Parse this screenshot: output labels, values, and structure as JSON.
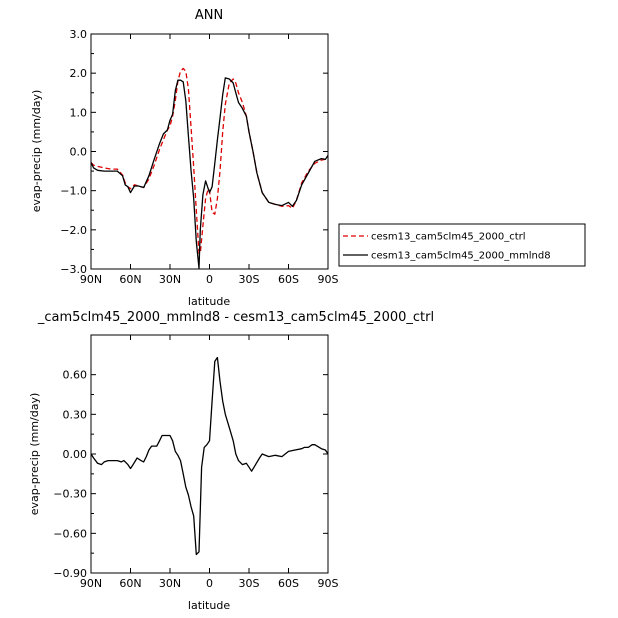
{
  "chart_data": [
    {
      "type": "line",
      "title": "ANN",
      "xlabel": "latitude",
      "ylabel": "evap-precip (mm/day)",
      "x_tick_labels": [
        "90N",
        "60N",
        "30N",
        "0",
        "30S",
        "60S",
        "90S"
      ],
      "y_tick_labels": [
        "3.0",
        "2.0",
        "1.0",
        "0.0",
        "-1.0",
        "-2.0",
        "-3.0"
      ],
      "xlim": [
        90,
        -90
      ],
      "ylim": [
        -3.0,
        3.0
      ],
      "legend_position": "right",
      "series": [
        {
          "name": "cesm13_cam5clm45_2000_ctrl",
          "color": "#dd0000",
          "dash": "dashed",
          "x": [
            90,
            88,
            85,
            80,
            75,
            70,
            66,
            64,
            62,
            60,
            57,
            54,
            50,
            46,
            42,
            38,
            35,
            32,
            30,
            28,
            26,
            24,
            22,
            20,
            18,
            16,
            14,
            12,
            10,
            8,
            7,
            5,
            3,
            1,
            0,
            -2,
            -4,
            -6,
            -8,
            -10,
            -12,
            -15,
            -18,
            -20,
            -22,
            -25,
            -28,
            -30,
            -33,
            -36,
            -40,
            -45,
            -50,
            -55,
            -60,
            -63,
            -66,
            -70,
            -75,
            -80,
            -85,
            -88,
            -90
          ],
          "y": [
            -0.28,
            -0.35,
            -0.38,
            -0.42,
            -0.45,
            -0.45,
            -0.6,
            -0.8,
            -0.9,
            -0.95,
            -0.85,
            -0.88,
            -0.92,
            -0.7,
            -0.35,
            0.05,
            0.3,
            0.55,
            0.65,
            0.9,
            1.3,
            1.8,
            2.05,
            2.12,
            2.05,
            1.6,
            0.6,
            -0.4,
            -1.5,
            -2.6,
            -2.6,
            -1.9,
            -1.2,
            -0.95,
            -1.0,
            -1.55,
            -1.6,
            -1.2,
            -0.5,
            0.5,
            1.2,
            1.75,
            1.85,
            1.75,
            1.5,
            1.25,
            0.9,
            0.5,
            0.0,
            -0.55,
            -1.05,
            -1.3,
            -1.35,
            -1.4,
            -1.38,
            -1.45,
            -1.25,
            -0.8,
            -0.5,
            -0.3,
            -0.22,
            -0.2,
            -0.12
          ]
        },
        {
          "name": "cesm13_cam5clm45_2000_mmlnd8",
          "color": "#000000",
          "dash": "solid",
          "x": [
            90,
            88,
            85,
            80,
            75,
            70,
            66,
            64,
            62,
            60,
            57,
            54,
            50,
            46,
            42,
            38,
            35,
            32,
            30,
            28,
            26,
            24,
            22,
            20,
            18,
            16,
            14,
            12,
            10,
            8,
            7,
            5,
            3,
            1,
            0,
            -2,
            -4,
            -6,
            -8,
            -10,
            -12,
            -15,
            -18,
            -20,
            -22,
            -25,
            -28,
            -30,
            -33,
            -36,
            -40,
            -45,
            -50,
            -55,
            -60,
            -63,
            -66,
            -70,
            -75,
            -80,
            -85,
            -88,
            -90
          ],
          "y": [
            -0.28,
            -0.42,
            -0.48,
            -0.5,
            -0.5,
            -0.5,
            -0.62,
            -0.85,
            -0.9,
            -1.05,
            -0.88,
            -0.88,
            -0.92,
            -0.62,
            -0.2,
            0.2,
            0.45,
            0.55,
            0.8,
            0.95,
            1.55,
            1.82,
            1.82,
            1.78,
            1.3,
            0.4,
            -0.5,
            -1.2,
            -2.3,
            -2.98,
            -2.0,
            -1.1,
            -0.75,
            -0.95,
            -1.05,
            -0.9,
            -0.3,
            0.3,
            0.85,
            1.45,
            1.88,
            1.85,
            1.75,
            1.5,
            1.25,
            1.1,
            0.9,
            0.5,
            0.0,
            -0.55,
            -1.05,
            -1.3,
            -1.35,
            -1.38,
            -1.3,
            -1.4,
            -1.25,
            -0.85,
            -0.55,
            -0.25,
            -0.18,
            -0.2,
            -0.1
          ]
        }
      ]
    },
    {
      "type": "line",
      "title": "_cam5clm45_2000_mmlnd8 - cesm13_cam5clm45_2000_ctrl",
      "xlabel": "latitude",
      "ylabel": "evap-precip (mm/day)",
      "x_tick_labels": [
        "90N",
        "60N",
        "30N",
        "0",
        "30S",
        "60S",
        "90S"
      ],
      "y_tick_labels": [
        "0.60",
        "0.30",
        "0.00",
        "-0.30",
        "-0.60",
        "-0.90"
      ],
      "xlim": [
        90,
        -90
      ],
      "ylim": [
        -0.9,
        0.9
      ],
      "series": [
        {
          "color": "#000000",
          "dash": "solid",
          "x": [
            90,
            88,
            85,
            82,
            80,
            77,
            74,
            70,
            67,
            65,
            62,
            60,
            58,
            55,
            52,
            50,
            48,
            46,
            44,
            42,
            40,
            38,
            36,
            34,
            32,
            30,
            28,
            26,
            24,
            22,
            20,
            18,
            16,
            14,
            12,
            10,
            8,
            6,
            4,
            2,
            0,
            -2,
            -4,
            -6,
            -8,
            -10,
            -12,
            -15,
            -18,
            -20,
            -22,
            -25,
            -28,
            -30,
            -32,
            -35,
            -38,
            -40,
            -45,
            -50,
            -55,
            -60,
            -65,
            -70,
            -72,
            -75,
            -78,
            -80,
            -85,
            -88,
            -90
          ],
          "y": [
            0.0,
            -0.03,
            -0.07,
            -0.08,
            -0.06,
            -0.05,
            -0.05,
            -0.05,
            -0.06,
            -0.05,
            -0.08,
            -0.11,
            -0.08,
            -0.03,
            -0.05,
            -0.06,
            -0.02,
            0.03,
            0.06,
            0.06,
            0.06,
            0.1,
            0.14,
            0.14,
            0.14,
            0.14,
            0.1,
            0.02,
            -0.01,
            -0.05,
            -0.15,
            -0.25,
            -0.31,
            -0.4,
            -0.47,
            -0.76,
            -0.74,
            -0.1,
            0.05,
            0.07,
            0.1,
            0.4,
            0.7,
            0.73,
            0.55,
            0.4,
            0.3,
            0.2,
            0.1,
            0.0,
            -0.05,
            -0.08,
            -0.07,
            -0.1,
            -0.13,
            -0.08,
            -0.03,
            0.0,
            -0.02,
            -0.01,
            -0.02,
            0.02,
            0.03,
            0.04,
            0.05,
            0.05,
            0.07,
            0.07,
            0.04,
            0.03,
            0.0
          ]
        }
      ]
    }
  ]
}
